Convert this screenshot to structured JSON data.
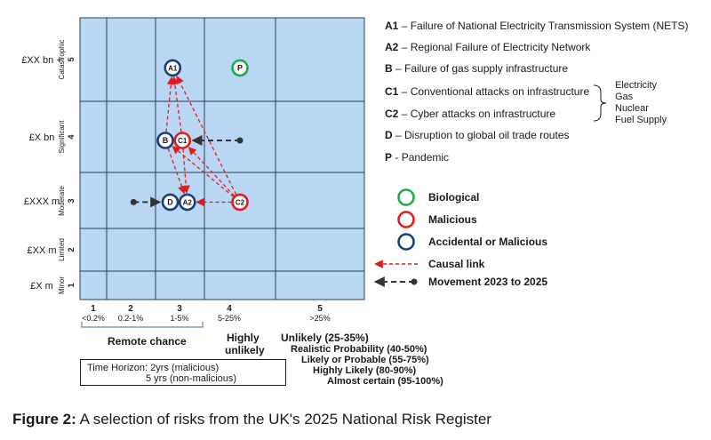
{
  "chart_data": {
    "type": "risk_matrix",
    "x_levels": [
      {
        "level": "1",
        "range": "<0.2%"
      },
      {
        "level": "2",
        "range": "0.2-1%"
      },
      {
        "level": "3",
        "range": "1-5%"
      },
      {
        "level": "4",
        "range": "5-25%"
      },
      {
        "level": "5",
        "range": ">25%"
      }
    ],
    "y_levels": [
      {
        "level": "1",
        "name": "Minor",
        "cost": "£X m"
      },
      {
        "level": "2",
        "name": "Limited",
        "cost": "£XX m"
      },
      {
        "level": "3",
        "name": "Moderate",
        "cost": "£XXX m"
      },
      {
        "level": "4",
        "name": "Significant",
        "cost": "£X bn"
      },
      {
        "level": "5",
        "name": "Catastrophic",
        "cost": "£XX bn +"
      }
    ],
    "risks": [
      {
        "id": "A1",
        "likelihood": 2.85,
        "impact": 4.9,
        "category": "accidental_or_malicious"
      },
      {
        "id": "P",
        "likelihood": 4.0,
        "impact": 4.9,
        "category": "biological"
      },
      {
        "id": "B",
        "likelihood": 2.7,
        "impact": 3.95,
        "category": "accidental_or_malicious"
      },
      {
        "id": "C1",
        "likelihood": 3.05,
        "impact": 3.95,
        "category": "malicious"
      },
      {
        "id": "D",
        "likelihood": 2.8,
        "impact": 2.97,
        "category": "accidental_or_malicious"
      },
      {
        "id": "A2",
        "likelihood": 3.15,
        "impact": 2.97,
        "category": "accidental_or_malicious"
      },
      {
        "id": "C2",
        "likelihood": 4.0,
        "impact": 2.97,
        "category": "malicious"
      }
    ],
    "causal_links": [
      {
        "from": "C1",
        "to": "A1"
      },
      {
        "from": "C2",
        "to": "A1"
      },
      {
        "from": "B",
        "to": "A1"
      },
      {
        "from": "C1",
        "to": "A2"
      },
      {
        "from": "B",
        "to": "A2"
      },
      {
        "from": "C2",
        "to": "A2"
      },
      {
        "from": "C2",
        "to": "B"
      },
      {
        "from": "C2",
        "to": "C1"
      }
    ],
    "movements": [
      {
        "risk": "C1",
        "from_likelihood": 4.0,
        "from_impact": 3.95
      },
      {
        "risk": "D",
        "from_likelihood": 2.05,
        "from_impact": 2.97
      }
    ]
  },
  "labels": {
    "ids": {
      "A1": "A1",
      "P": "P",
      "B": "B",
      "C1": "C1",
      "D": "D",
      "A2": "A2",
      "C2": "C2"
    },
    "x_axis": [
      {
        "num": "1",
        "range": "<0.2%"
      },
      {
        "num": "2",
        "range": "0.2-1%"
      },
      {
        "num": "3",
        "range": "1-5%"
      },
      {
        "num": "4",
        "range": "5-25%"
      },
      {
        "num": "5",
        "range": ">25%"
      }
    ],
    "y_axis": [
      {
        "cost": "£XX bn +",
        "name": "Catastrophic",
        "num": "5"
      },
      {
        "cost": "£X bn",
        "name": "Significant",
        "num": "4"
      },
      {
        "cost": "£XXX m",
        "name": "Moderate",
        "num": "3"
      },
      {
        "cost": "£XX m",
        "name": "Limited",
        "num": "2"
      },
      {
        "cost": "£X m",
        "name": "Minor",
        "num": "1"
      }
    ]
  },
  "legend": {
    "items": [
      {
        "code": "A1",
        "text": "Failure of National Electricity Transmission System (NETS)"
      },
      {
        "code": "A2",
        "text": "Regional Failure of Electricity Network"
      },
      {
        "code": "B",
        "text": "Failure of gas supply infrastructure"
      },
      {
        "code": "C1",
        "text": "Conventional attacks on infrastructure"
      },
      {
        "code": "C2",
        "text": "Cyber attacks on infrastructure"
      },
      {
        "code": "D",
        "text": "Disruption to global oil trade routes"
      },
      {
        "code": "P",
        "text": "Pandemic"
      }
    ],
    "sep": " – ",
    "p_sep": " - ",
    "c_targets": [
      "Electricity",
      "Gas",
      "Nuclear",
      "Fuel Supply"
    ],
    "key": {
      "biological": "Biological",
      "malicious": "Malicious",
      "accidental_or_malicious": "Accidental or Malicious",
      "causal_link": "Causal link",
      "movement": "Movement 2023 to 2025"
    }
  },
  "likelihood_terms": {
    "remote": "Remote chance",
    "highly_unlikely_1": "Highly",
    "highly_unlikely_2": "unlikely",
    "unlikely": "Unlikely (25-35%)",
    "realistic": "Realistic Probability (40-50%)",
    "likely": "Likely or Probable (55-75%)",
    "highly_likely": "Highly Likely (80-90%)",
    "almost_certain": "Almost certain (95-100%)"
  },
  "time_horizon": {
    "line1": "Time Horizon: 2yrs (malicious)",
    "line2": "5 yrs (non-malicious)"
  },
  "caption": {
    "bold": "Figure 2:",
    "text": " A selection of risks from the UK's 2025 National Risk Register"
  },
  "colors": {
    "background": "#b9d6f2",
    "grid": "#2d3e5c",
    "biological": "#1fab48",
    "malicious": "#e01b1b",
    "accidental": "#1c3f73",
    "movement": "#333333"
  }
}
